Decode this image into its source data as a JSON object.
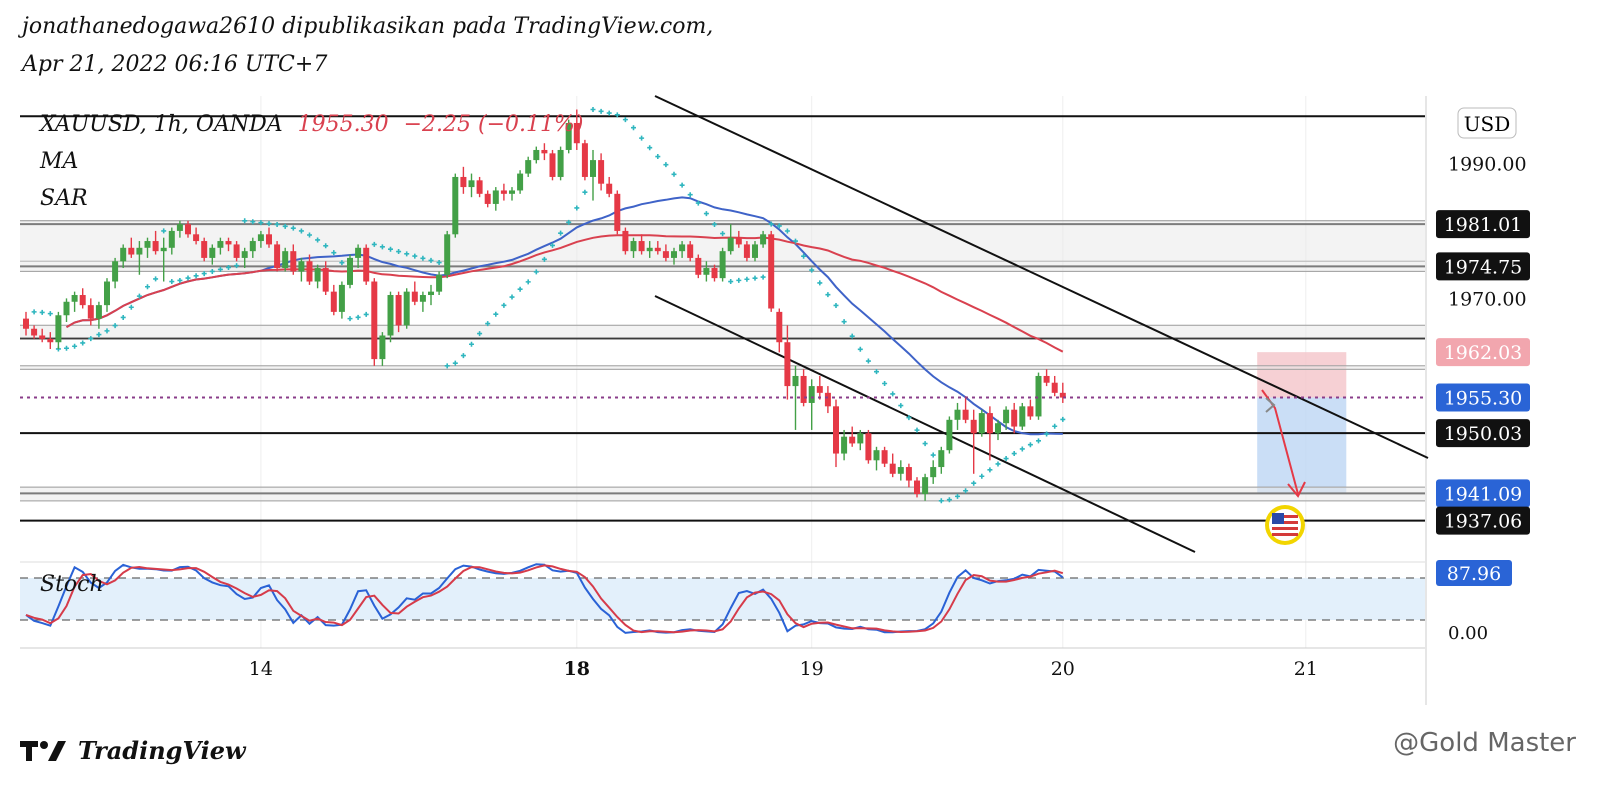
{
  "publish": {
    "line": "jonathanedogawa2610 dipublikasikan pada TradingView.com,",
    "date": "Apr 21, 2022 06:16 UTC+7"
  },
  "legend": {
    "symbol": "XAUUSD, 1h, OANDA",
    "price": "1955.30",
    "change": "−2.25 (−0.11%)",
    "ind1": "MA",
    "ind2": "SAR",
    "stoch": "Stoch"
  },
  "colors": {
    "up": "#43a047",
    "down": "#e53946",
    "ma_fast": "#3f63c8",
    "ma_slow": "#d9414f",
    "sar": "#2fb6bf",
    "stoch_k": "#2a62d6",
    "stoch_d": "#d63b4a",
    "last_price": "#2a64d6",
    "short_stop": "#f4c4c9",
    "short_target": "#bdd6f4"
  },
  "chart_data": {
    "type": "candlestick",
    "symbol": "XAUUSD",
    "timeframe": "1h",
    "currency": "USD",
    "ylim": [
      1933,
      2000
    ],
    "x_ticks": [
      {
        "label": "14",
        "bar": 29,
        "bold": false
      },
      {
        "label": "18",
        "bar": 68,
        "bold": true
      },
      {
        "label": "19",
        "bar": 97,
        "bold": false
      },
      {
        "label": "20",
        "bar": 128,
        "bold": false
      },
      {
        "label": "21",
        "bar": 158,
        "bold": false
      }
    ],
    "y_ticks": [
      1990.0,
      1970.0
    ],
    "price_labels": [
      {
        "value": "1981.01",
        "style": "dark"
      },
      {
        "value": "1974.75",
        "style": "dark"
      },
      {
        "value": "1962.03",
        "style": "red"
      },
      {
        "value": "1955.30",
        "style": "blue"
      },
      {
        "value": "1950.03",
        "style": "dark"
      },
      {
        "value": "1941.09",
        "style": "blue"
      },
      {
        "value": "1937.06",
        "style": "dark"
      }
    ],
    "horizontal_levels": [
      1997.0,
      1981.5,
      1981.01,
      1975.5,
      1974.75,
      1974.0,
      1966.0,
      1964.07,
      1960.0,
      1959.5,
      1950.03,
      1942.0,
      1941.09,
      1940.0,
      1937.06
    ],
    "last_price": 1955.3,
    "position": {
      "type": "short",
      "entry": 1955.3,
      "stop": 1962.03,
      "target": 1941.09,
      "bar_start": 152,
      "bar_end": 163
    },
    "candles": [
      [
        1967.0,
        1968.0,
        1964.5,
        1965.5
      ],
      [
        1965.5,
        1966.0,
        1964.0,
        1964.5
      ],
      [
        1964.5,
        1965.5,
        1963.5,
        1964.0
      ],
      [
        1964.0,
        1965.0,
        1962.5,
        1963.5
      ],
      [
        1963.5,
        1968.0,
        1962.5,
        1967.5
      ],
      [
        1967.5,
        1970.0,
        1966.5,
        1969.5
      ],
      [
        1969.5,
        1971.0,
        1968.0,
        1970.5
      ],
      [
        1970.5,
        1971.5,
        1968.5,
        1969.0
      ],
      [
        1969.0,
        1970.0,
        1966.0,
        1967.0
      ],
      [
        1967.0,
        1969.5,
        1965.5,
        1969.0
      ],
      [
        1969.0,
        1973.0,
        1968.0,
        1972.5
      ],
      [
        1972.5,
        1976.0,
        1971.5,
        1975.5
      ],
      [
        1975.5,
        1978.0,
        1974.5,
        1977.5
      ],
      [
        1977.5,
        1979.0,
        1976.0,
        1976.5
      ],
      [
        1976.5,
        1978.5,
        1973.5,
        1977.5
      ],
      [
        1977.5,
        1979.0,
        1976.0,
        1978.5
      ],
      [
        1978.5,
        1980.0,
        1976.5,
        1977.0
      ],
      [
        1977.0,
        1979.0,
        1972.5,
        1977.5
      ],
      [
        1977.5,
        1980.5,
        1976.5,
        1980.0
      ],
      [
        1980.0,
        1981.5,
        1979.0,
        1981.0
      ],
      [
        1981.0,
        1981.5,
        1979.0,
        1979.5
      ],
      [
        1979.5,
        1980.5,
        1978.0,
        1978.5
      ],
      [
        1978.5,
        1979.0,
        1975.5,
        1976.0
      ],
      [
        1976.0,
        1978.0,
        1975.0,
        1977.5
      ],
      [
        1977.5,
        1979.0,
        1976.5,
        1978.5
      ],
      [
        1978.5,
        1979.0,
        1977.0,
        1978.0
      ],
      [
        1978.0,
        1978.5,
        1975.5,
        1976.0
      ],
      [
        1976.0,
        1977.5,
        1974.5,
        1977.0
      ],
      [
        1977.0,
        1979.0,
        1976.0,
        1978.5
      ],
      [
        1978.5,
        1980.0,
        1977.5,
        1979.5
      ],
      [
        1979.5,
        1980.5,
        1977.5,
        1978.0
      ],
      [
        1978.0,
        1978.5,
        1974.0,
        1974.5
      ],
      [
        1974.5,
        1977.5,
        1974.0,
        1977.0
      ],
      [
        1977.0,
        1978.0,
        1973.5,
        1974.0
      ],
      [
        1974.0,
        1976.0,
        1972.5,
        1975.5
      ],
      [
        1975.5,
        1976.5,
        1972.0,
        1972.5
      ],
      [
        1972.5,
        1975.0,
        1971.5,
        1974.5
      ],
      [
        1974.5,
        1975.5,
        1970.5,
        1971.0
      ],
      [
        1971.0,
        1972.0,
        1967.5,
        1968.0
      ],
      [
        1968.0,
        1972.5,
        1967.0,
        1972.0
      ],
      [
        1972.0,
        1976.5,
        1971.5,
        1976.0
      ],
      [
        1976.0,
        1978.0,
        1974.5,
        1977.5
      ],
      [
        1977.5,
        1978.0,
        1972.0,
        1972.5
      ],
      [
        1972.5,
        1973.0,
        1960.0,
        1961.0
      ],
      [
        1961.0,
        1965.0,
        1960.0,
        1964.5
      ],
      [
        1964.5,
        1971.0,
        1963.5,
        1970.5
      ],
      [
        1970.5,
        1971.0,
        1965.0,
        1966.0
      ],
      [
        1966.0,
        1971.5,
        1965.5,
        1971.0
      ],
      [
        1971.0,
        1972.5,
        1969.0,
        1969.5
      ],
      [
        1969.5,
        1971.0,
        1968.0,
        1970.5
      ],
      [
        1970.5,
        1972.0,
        1969.0,
        1971.0
      ],
      [
        1971.0,
        1974.0,
        1970.5,
        1973.5
      ],
      [
        1973.5,
        1980.0,
        1973.0,
        1979.5
      ],
      [
        1979.5,
        1988.5,
        1979.0,
        1988.0
      ],
      [
        1988.0,
        1989.5,
        1985.5,
        1986.5
      ],
      [
        1986.5,
        1988.5,
        1985.0,
        1987.5
      ],
      [
        1987.5,
        1988.0,
        1985.0,
        1985.5
      ],
      [
        1985.5,
        1986.0,
        1983.5,
        1984.0
      ],
      [
        1984.0,
        1986.5,
        1983.0,
        1986.0
      ],
      [
        1986.0,
        1987.0,
        1984.5,
        1985.5
      ],
      [
        1985.5,
        1986.5,
        1984.5,
        1986.0
      ],
      [
        1986.0,
        1989.0,
        1985.5,
        1988.5
      ],
      [
        1988.5,
        1991.0,
        1988.0,
        1990.5
      ],
      [
        1990.5,
        1992.5,
        1990.0,
        1992.0
      ],
      [
        1992.0,
        1993.0,
        1990.5,
        1991.5
      ],
      [
        1991.5,
        1992.0,
        1987.5,
        1988.0
      ],
      [
        1988.0,
        1992.5,
        1987.5,
        1992.0
      ],
      [
        1992.0,
        1996.5,
        1991.5,
        1996.0
      ],
      [
        1996.0,
        1998.0,
        1992.0,
        1993.0
      ],
      [
        1993.0,
        1993.5,
        1987.5,
        1988.0
      ],
      [
        1988.0,
        1992.0,
        1984.5,
        1990.5
      ],
      [
        1990.5,
        1991.5,
        1986.0,
        1987.0
      ],
      [
        1987.0,
        1988.0,
        1985.0,
        1985.5
      ],
      [
        1985.5,
        1986.0,
        1979.5,
        1980.0
      ],
      [
        1980.0,
        1980.5,
        1976.5,
        1977.0
      ],
      [
        1977.0,
        1979.0,
        1976.0,
        1978.5
      ],
      [
        1978.5,
        1979.5,
        1976.5,
        1977.0
      ],
      [
        1977.0,
        1978.5,
        1976.0,
        1977.5
      ],
      [
        1977.5,
        1978.5,
        1976.5,
        1977.0
      ],
      [
        1977.0,
        1978.0,
        1975.5,
        1976.0
      ],
      [
        1976.0,
        1977.5,
        1975.0,
        1977.0
      ],
      [
        1977.0,
        1978.5,
        1976.0,
        1978.0
      ],
      [
        1978.0,
        1978.5,
        1975.5,
        1976.0
      ],
      [
        1976.0,
        1976.5,
        1973.0,
        1973.5
      ],
      [
        1973.5,
        1975.5,
        1972.5,
        1974.5
      ],
      [
        1974.5,
        1975.0,
        1972.5,
        1973.0
      ],
      [
        1973.0,
        1977.5,
        1972.5,
        1977.0
      ],
      [
        1977.0,
        1981.0,
        1976.5,
        1979.0
      ],
      [
        1979.0,
        1980.0,
        1977.5,
        1978.0
      ],
      [
        1978.0,
        1978.5,
        1975.5,
        1976.0
      ],
      [
        1976.0,
        1978.5,
        1975.5,
        1978.0
      ],
      [
        1978.0,
        1980.0,
        1977.5,
        1979.5
      ],
      [
        1979.5,
        1980.0,
        1968.0,
        1968.5
      ],
      [
        1968.0,
        1968.5,
        1962.0,
        1963.5
      ],
      [
        1963.5,
        1966.0,
        1955.0,
        1957.0
      ],
      [
        1957.0,
        1960.0,
        1950.5,
        1958.5
      ],
      [
        1958.5,
        1959.5,
        1954.0,
        1954.5
      ],
      [
        1954.5,
        1958.0,
        1950.5,
        1957.0
      ],
      [
        1957.0,
        1958.5,
        1955.0,
        1956.0
      ],
      [
        1956.0,
        1957.0,
        1953.0,
        1954.0
      ],
      [
        1954.0,
        1955.0,
        1945.0,
        1947.0
      ],
      [
        1947.0,
        1950.5,
        1946.0,
        1949.5
      ],
      [
        1949.5,
        1951.0,
        1948.0,
        1948.5
      ],
      [
        1948.5,
        1950.5,
        1947.5,
        1950.0
      ],
      [
        1950.0,
        1950.5,
        1945.5,
        1946.0
      ],
      [
        1946.0,
        1948.0,
        1944.5,
        1947.5
      ],
      [
        1947.5,
        1948.0,
        1945.0,
        1945.5
      ],
      [
        1945.5,
        1947.0,
        1943.5,
        1944.0
      ],
      [
        1944.0,
        1946.0,
        1943.0,
        1945.0
      ],
      [
        1945.0,
        1945.5,
        1942.0,
        1943.0
      ],
      [
        1943.0,
        1943.5,
        1940.5,
        1941.0
      ],
      [
        1941.0,
        1944.0,
        1940.0,
        1943.5
      ],
      [
        1943.5,
        1946.0,
        1942.5,
        1945.0
      ],
      [
        1945.0,
        1948.0,
        1944.0,
        1947.5
      ],
      [
        1947.5,
        1952.5,
        1947.0,
        1952.0
      ],
      [
        1952.0,
        1954.5,
        1950.5,
        1953.5
      ],
      [
        1953.5,
        1955.5,
        1951.5,
        1952.0
      ],
      [
        1952.0,
        1953.5,
        1944.0,
        1950.0
      ],
      [
        1950.0,
        1953.5,
        1949.5,
        1953.0
      ],
      [
        1953.0,
        1954.0,
        1946.0,
        1950.0
      ],
      [
        1950.0,
        1952.0,
        1949.0,
        1951.5
      ],
      [
        1951.5,
        1954.0,
        1950.5,
        1953.5
      ],
      [
        1953.5,
        1954.5,
        1950.0,
        1951.0
      ],
      [
        1951.0,
        1954.5,
        1950.5,
        1954.0
      ],
      [
        1954.0,
        1955.0,
        1952.0,
        1952.5
      ],
      [
        1952.5,
        1959.0,
        1952.0,
        1958.5
      ],
      [
        1958.5,
        1959.5,
        1957.0,
        1957.5
      ],
      [
        1957.5,
        1958.5,
        1955.5,
        1956.0
      ],
      [
        1956.0,
        1957.5,
        1954.5,
        1955.3
      ]
    ],
    "stoch": {
      "ylim": [
        0,
        100
      ],
      "upper_band": 80,
      "lower_band": 20,
      "last_value": "87.96",
      "zero_label": "0.00"
    }
  }
}
